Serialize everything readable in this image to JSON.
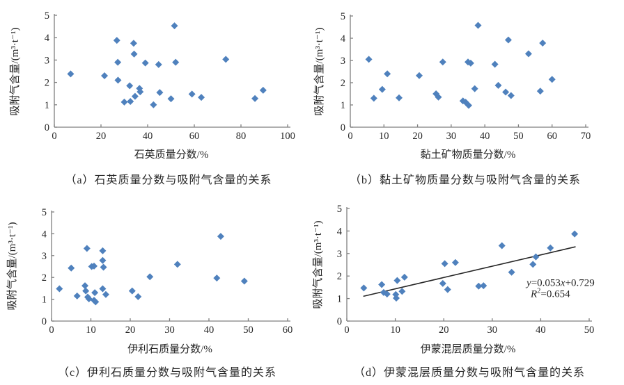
{
  "figure": {
    "background": "#ffffff",
    "colors": {
      "marker": "#4F81BD",
      "axis": "#7f7f7f",
      "text": "#262626",
      "trendline": "#262626"
    }
  },
  "chart_data": [
    {
      "panel": "a",
      "type": "scatter",
      "caption": "（a）石英质量分数与吸附气含量的关系",
      "xlabel": "石英质量分数/%",
      "ylabel": "吸附气含量/(m³·t⁻¹)",
      "xlim": [
        0,
        100
      ],
      "ylim": [
        0,
        5
      ],
      "xticks": [
        0,
        20,
        40,
        60,
        80,
        100
      ],
      "yticks": [
        0,
        1,
        2,
        3,
        4,
        5
      ],
      "grid": false,
      "marker": {
        "shape": "diamond",
        "color": "#4F81BD",
        "size": 10
      },
      "points": [
        [
          7,
          2.38
        ],
        [
          21.5,
          2.3
        ],
        [
          26.8,
          3.88
        ],
        [
          27.2,
          2.9
        ],
        [
          27.3,
          2.1
        ],
        [
          30,
          1.12
        ],
        [
          32.3,
          1.85
        ],
        [
          32.6,
          1.15
        ],
        [
          34,
          3.75
        ],
        [
          34.2,
          3.27
        ],
        [
          34.6,
          1.38
        ],
        [
          36.5,
          1.73
        ],
        [
          36.8,
          1.58
        ],
        [
          39,
          2.87
        ],
        [
          42.5,
          1.0
        ],
        [
          44.7,
          2.8
        ],
        [
          45.2,
          1.55
        ],
        [
          50,
          1.27
        ],
        [
          51.5,
          4.53
        ],
        [
          52,
          2.9
        ],
        [
          59,
          1.48
        ],
        [
          63,
          1.33
        ],
        [
          73.5,
          3.03
        ],
        [
          86,
          1.28
        ],
        [
          89.5,
          1.65
        ]
      ]
    },
    {
      "panel": "b",
      "type": "scatter",
      "caption": "（b）黏土矿物质量分数与吸附气含量的关系",
      "xlabel": "黏土矿物质量分数/%",
      "ylabel": "吸附气含量/(m³·t⁻¹)",
      "xlim": [
        0,
        70
      ],
      "ylim": [
        0,
        5
      ],
      "xticks": [
        0,
        10,
        20,
        30,
        40,
        50,
        60,
        70
      ],
      "yticks": [
        0,
        1,
        2,
        3,
        4,
        5
      ],
      "grid": false,
      "marker": {
        "shape": "diamond",
        "color": "#4F81BD",
        "size": 10
      },
      "points": [
        [
          5.5,
          3.05
        ],
        [
          7,
          1.3
        ],
        [
          9.5,
          1.7
        ],
        [
          11,
          2.4
        ],
        [
          14.5,
          1.32
        ],
        [
          20.5,
          2.32
        ],
        [
          25.5,
          1.5
        ],
        [
          26.2,
          1.35
        ],
        [
          27.5,
          2.93
        ],
        [
          33.5,
          1.18
        ],
        [
          34.3,
          1.12
        ],
        [
          35.2,
          0.98
        ],
        [
          35,
          2.93
        ],
        [
          35.8,
          2.88
        ],
        [
          37,
          1.73
        ],
        [
          38,
          4.58
        ],
        [
          43,
          2.83
        ],
        [
          44,
          1.88
        ],
        [
          46.2,
          1.58
        ],
        [
          47,
          3.92
        ],
        [
          47.8,
          1.42
        ],
        [
          53,
          3.3
        ],
        [
          56.5,
          1.62
        ],
        [
          57.2,
          3.78
        ],
        [
          60,
          2.15
        ]
      ]
    },
    {
      "panel": "c",
      "type": "scatter",
      "caption": "（c）伊利石质量分数与吸附气含量的关系",
      "xlabel": "伊利石质量分数/%",
      "ylabel": "吸附气含量/(m³·t⁻¹)",
      "xlim": [
        0,
        60
      ],
      "ylim": [
        0,
        5
      ],
      "xticks": [
        0,
        10,
        20,
        30,
        40,
        50,
        60
      ],
      "yticks": [
        0,
        1,
        2,
        3,
        4,
        5
      ],
      "grid": false,
      "marker": {
        "shape": "diamond",
        "color": "#4F81BD",
        "size": 10
      },
      "points": [
        [
          2,
          1.48
        ],
        [
          5,
          2.43
        ],
        [
          6.5,
          1.15
        ],
        [
          8.5,
          1.62
        ],
        [
          8.7,
          1.38
        ],
        [
          9,
          3.33
        ],
        [
          9.2,
          1.1
        ],
        [
          9.5,
          1.02
        ],
        [
          10.2,
          2.5
        ],
        [
          10.8,
          2.52
        ],
        [
          11,
          1.3
        ],
        [
          10.8,
          0.95
        ],
        [
          11.2,
          0.88
        ],
        [
          13,
          3.22
        ],
        [
          13,
          2.78
        ],
        [
          13.2,
          2.47
        ],
        [
          13,
          1.48
        ],
        [
          13.8,
          1.22
        ],
        [
          20.5,
          1.38
        ],
        [
          22,
          1.12
        ],
        [
          25,
          2.03
        ],
        [
          32,
          2.6
        ],
        [
          42,
          1.97
        ],
        [
          43,
          3.88
        ],
        [
          49,
          1.83
        ]
      ]
    },
    {
      "panel": "d",
      "type": "scatter",
      "caption": "（d）伊蒙混层质量分数与吸附气含量的关系",
      "xlabel": "伊蒙混层质量分数/%",
      "ylabel": "吸附气含量/(m³·t⁻¹)",
      "xlim": [
        0,
        50
      ],
      "ylim": [
        0,
        5
      ],
      "xticks": [
        0,
        10,
        20,
        30,
        40,
        50
      ],
      "yticks": [
        0,
        1,
        2,
        3,
        4,
        5
      ],
      "grid": false,
      "marker": {
        "shape": "diamond",
        "color": "#4F81BD",
        "size": 10
      },
      "points": [
        [
          3.5,
          1.47
        ],
        [
          7.2,
          1.62
        ],
        [
          7.6,
          1.27
        ],
        [
          8.3,
          1.2
        ],
        [
          10.1,
          1.18
        ],
        [
          10.2,
          1.02
        ],
        [
          10.4,
          1.8
        ],
        [
          11.4,
          1.32
        ],
        [
          11.9,
          1.95
        ],
        [
          19.8,
          1.67
        ],
        [
          20.2,
          2.55
        ],
        [
          20.8,
          1.4
        ],
        [
          22.4,
          2.6
        ],
        [
          27.2,
          1.55
        ],
        [
          28.2,
          1.57
        ],
        [
          32,
          3.35
        ],
        [
          34,
          2.17
        ],
        [
          38.4,
          2.52
        ],
        [
          39,
          2.85
        ],
        [
          42,
          3.25
        ],
        [
          47,
          3.87
        ]
      ],
      "trendline": {
        "x1": 3.4,
        "y1": 1.1,
        "x2": 47.2,
        "y2": 3.3,
        "equation": "y=0.053x+0.729",
        "r_squared": "R²=0.654"
      },
      "annotation_lines": [
        {
          "x": 44.1,
          "y": 1.56,
          "parts": [
            {
              "t": "y",
              "i": 1
            },
            {
              "t": "=0.053"
            },
            {
              "t": "x",
              "i": 1
            },
            {
              "t": "+0.729"
            }
          ]
        },
        {
          "x": 42.0,
          "y": 1.06,
          "parts": [
            {
              "t": "R",
              "i": 1
            },
            {
              "t": "2",
              "sup": 1
            },
            {
              "t": "=0.654"
            }
          ]
        }
      ]
    }
  ]
}
